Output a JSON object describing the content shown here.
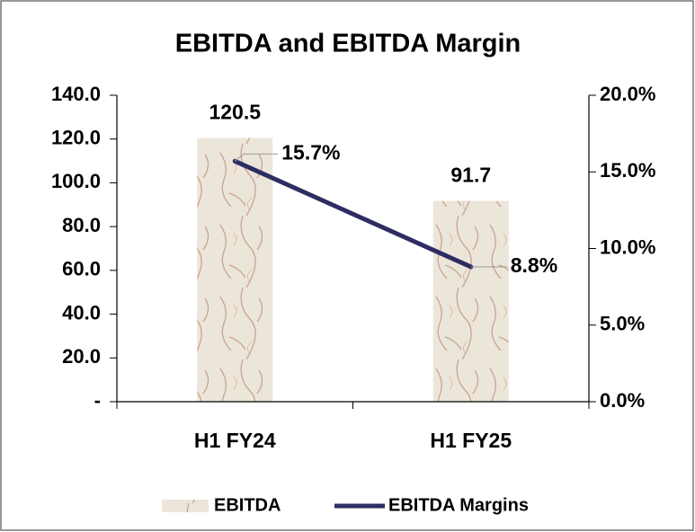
{
  "chart_data": {
    "type": "bar-line",
    "title": "EBITDA and EBITDA Margin",
    "categories": [
      "H1 FY24",
      "H1 FY25"
    ],
    "series": [
      {
        "name": "EBITDA",
        "type": "bar",
        "color": "#ece5da",
        "values": [
          120.5,
          91.7
        ]
      },
      {
        "name": "EBITDA Margins",
        "type": "line",
        "axis": "y2",
        "color": "#2d2d63",
        "values": [
          15.7,
          8.8
        ],
        "value_labels": [
          "15.7%",
          "8.8%"
        ]
      }
    ],
    "ylim": [
      0,
      140
    ],
    "yticks": [
      {
        "value": 0,
        "label": "-"
      },
      {
        "value": 20,
        "label": "20.0"
      },
      {
        "value": 40,
        "label": "40.0"
      },
      {
        "value": 60,
        "label": "60.0"
      },
      {
        "value": 80,
        "label": "80.0"
      },
      {
        "value": 100,
        "label": "100.0"
      },
      {
        "value": 120,
        "label": "120.0"
      },
      {
        "value": 140,
        "label": "140.0"
      }
    ],
    "y2lim": [
      0,
      20
    ],
    "y2ticks": [
      {
        "value": 0,
        "label": "0.0%"
      },
      {
        "value": 5,
        "label": "5.0%"
      },
      {
        "value": 10,
        "label": "10.0%"
      },
      {
        "value": 15,
        "label": "15.0%"
      },
      {
        "value": 20,
        "label": "20.0%"
      }
    ],
    "legend": "bottom"
  }
}
